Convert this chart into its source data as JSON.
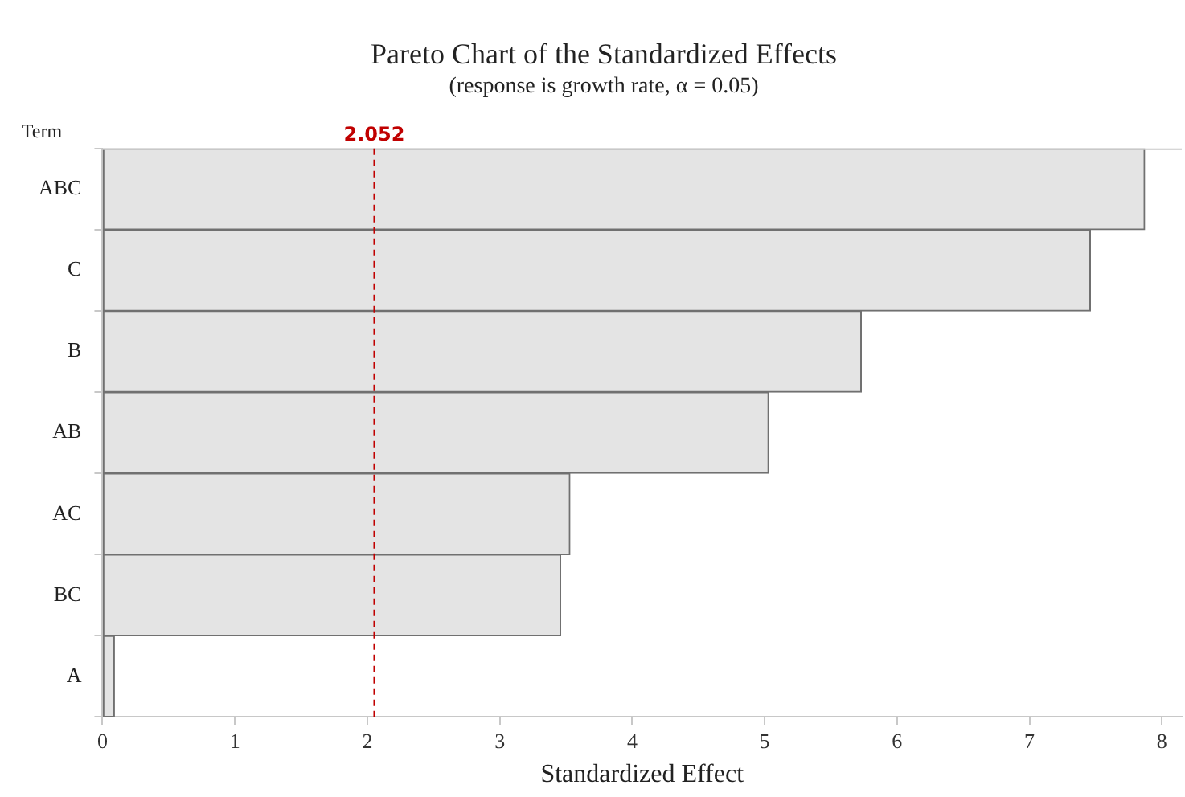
{
  "chart_data": {
    "type": "bar",
    "orientation": "horizontal",
    "title": "Pareto Chart of the Standardized Effects",
    "subtitle": "(response is growth rate, α = 0.05)",
    "xlabel": "Standardized Effect",
    "ylabel": "Term",
    "categories": [
      "ABC",
      "C",
      "B",
      "AB",
      "AC",
      "BC",
      "A"
    ],
    "values": [
      7.87,
      7.46,
      5.73,
      5.03,
      3.53,
      3.46,
      0.09
    ],
    "color": "#e4e4e4",
    "xlim": [
      0,
      8.15
    ],
    "xticks": [
      0,
      1,
      2,
      3,
      4,
      5,
      6,
      7,
      8
    ],
    "ref_lines": [
      {
        "axis": "x",
        "value": 2.052,
        "label": "2.052",
        "color": "#c00000",
        "line_style": "dashed"
      }
    ],
    "grid": false,
    "legend": false
  }
}
